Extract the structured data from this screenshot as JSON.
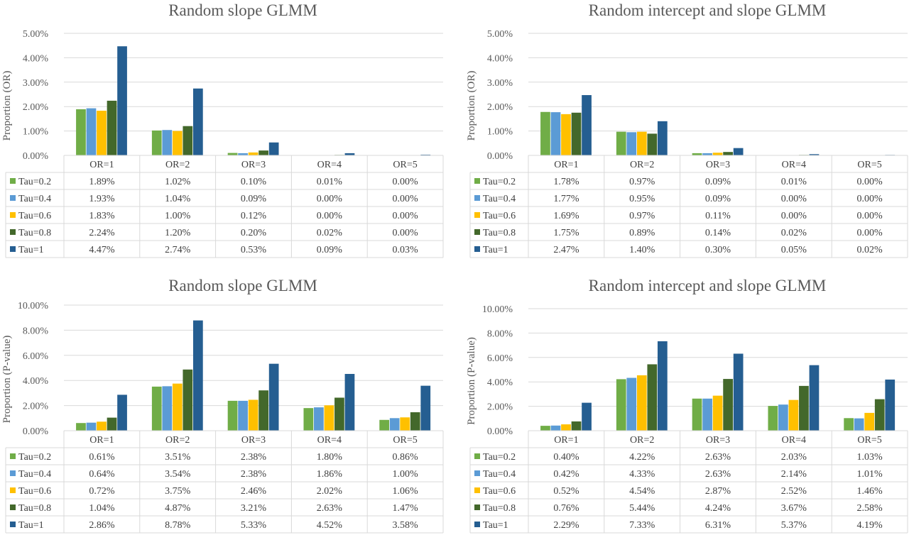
{
  "colors": {
    "Tau=0.2": "#70ad47",
    "Tau=0.4": "#5b9bd5",
    "Tau=0.6": "#ffc000",
    "Tau=0.8": "#43682b",
    "Tau=1": "#255e91"
  },
  "chart_data": [
    {
      "type": "bar",
      "title": "Random slope GLMM",
      "ylabel": "Proportion (OR)",
      "ylim": [
        0,
        5
      ],
      "yticks": [
        "0.00%",
        "1.00%",
        "2.00%",
        "3.00%",
        "4.00%",
        "5.00%"
      ],
      "categories": [
        "OR=1",
        "OR=2",
        "OR=3",
        "OR=4",
        "OR=5"
      ],
      "grid": true,
      "data_table": true,
      "series": [
        {
          "name": "Tau=0.2",
          "values": [
            1.89,
            1.02,
            0.1,
            0.01,
            0.0
          ],
          "labels": [
            "1.89%",
            "1.02%",
            "0.10%",
            "0.01%",
            "0.00%"
          ]
        },
        {
          "name": "Tau=0.4",
          "values": [
            1.93,
            1.04,
            0.09,
            0.0,
            0.0
          ],
          "labels": [
            "1.93%",
            "1.04%",
            "0.09%",
            "0.00%",
            "0.00%"
          ]
        },
        {
          "name": "Tau=0.6",
          "values": [
            1.83,
            1.0,
            0.12,
            0.0,
            0.0
          ],
          "labels": [
            "1.83%",
            "1.00%",
            "0.12%",
            "0.00%",
            "0.00%"
          ]
        },
        {
          "name": "Tau=0.8",
          "values": [
            2.24,
            1.2,
            0.2,
            0.02,
            0.0
          ],
          "labels": [
            "2.24%",
            "1.20%",
            "0.20%",
            "0.02%",
            "0.00%"
          ]
        },
        {
          "name": "Tau=1",
          "values": [
            4.47,
            2.74,
            0.53,
            0.09,
            0.03
          ],
          "labels": [
            "4.47%",
            "2.74%",
            "0.53%",
            "0.09%",
            "0.03%"
          ]
        }
      ]
    },
    {
      "type": "bar",
      "title": "Random intercept and slope GLMM",
      "ylabel": "Proportion (OR)",
      "ylim": [
        0,
        5
      ],
      "yticks": [
        "0.00%",
        "1.00%",
        "2.00%",
        "3.00%",
        "4.00%",
        "5.00%"
      ],
      "categories": [
        "OR=1",
        "OR=2",
        "OR=3",
        "OR=4",
        "OR=5"
      ],
      "grid": true,
      "data_table": true,
      "series": [
        {
          "name": "Tau=0.2",
          "values": [
            1.78,
            0.97,
            0.09,
            0.01,
            0.0
          ],
          "labels": [
            "1.78%",
            "0.97%",
            "0.09%",
            "0.01%",
            "0.00%"
          ]
        },
        {
          "name": "Tau=0.4",
          "values": [
            1.77,
            0.95,
            0.09,
            0.0,
            0.0
          ],
          "labels": [
            "1.77%",
            "0.95%",
            "0.09%",
            "0.00%",
            "0.00%"
          ]
        },
        {
          "name": "Tau=0.6",
          "values": [
            1.69,
            0.97,
            0.11,
            0.0,
            0.0
          ],
          "labels": [
            "1.69%",
            "0.97%",
            "0.11%",
            "0.00%",
            "0.00%"
          ]
        },
        {
          "name": "Tau=0.8",
          "values": [
            1.75,
            0.89,
            0.14,
            0.02,
            0.0
          ],
          "labels": [
            "1.75%",
            "0.89%",
            "0.14%",
            "0.02%",
            "0.00%"
          ]
        },
        {
          "name": "Tau=1",
          "values": [
            2.47,
            1.4,
            0.3,
            0.05,
            0.02
          ],
          "labels": [
            "2.47%",
            "1.40%",
            "0.30%",
            "0.05%",
            "0.02%"
          ]
        }
      ]
    },
    {
      "type": "bar",
      "title": "Random slope GLMM",
      "ylabel": "Proportion (P-value)",
      "ylim": [
        0,
        10
      ],
      "yticks": [
        "0.00%",
        "2.00%",
        "4.00%",
        "6.00%",
        "8.00%",
        "10.00%"
      ],
      "categories": [
        "OR=1",
        "OR=2",
        "OR=3",
        "OR=4",
        "OR=5"
      ],
      "grid": true,
      "data_table": true,
      "series": [
        {
          "name": "Tau=0.2",
          "values": [
            0.61,
            3.51,
            2.38,
            1.8,
            0.86
          ],
          "labels": [
            "0.61%",
            "3.51%",
            "2.38%",
            "1.80%",
            "0.86%"
          ]
        },
        {
          "name": "Tau=0.4",
          "values": [
            0.64,
            3.54,
            2.38,
            1.86,
            1.0
          ],
          "labels": [
            "0.64%",
            "3.54%",
            "2.38%",
            "1.86%",
            "1.00%"
          ]
        },
        {
          "name": "Tau=0.6",
          "values": [
            0.72,
            3.75,
            2.46,
            2.02,
            1.06
          ],
          "labels": [
            "0.72%",
            "3.75%",
            "2.46%",
            "2.02%",
            "1.06%"
          ]
        },
        {
          "name": "Tau=0.8",
          "values": [
            1.04,
            4.87,
            3.21,
            2.63,
            1.47
          ],
          "labels": [
            "1.04%",
            "4.87%",
            "3.21%",
            "2.63%",
            "1.47%"
          ]
        },
        {
          "name": "Tau=1",
          "values": [
            2.86,
            8.78,
            5.33,
            4.52,
            3.58
          ],
          "labels": [
            "2.86%",
            "8.78%",
            "5.33%",
            "4.52%",
            "3.58%"
          ]
        }
      ]
    },
    {
      "type": "bar",
      "title": "Random intercept and slope GLMM",
      "ylabel": "Proportion (P-value)",
      "ylim": [
        0,
        10
      ],
      "yticks": [
        "0.00%",
        "2.00%",
        "4.00%",
        "6.00%",
        "8.00%",
        "10.00%"
      ],
      "categories": [
        "OR=1",
        "OR=2",
        "OR=3",
        "OR=4",
        "OR=5"
      ],
      "grid": true,
      "data_table": true,
      "series": [
        {
          "name": "Tau=0.2",
          "values": [
            0.4,
            4.22,
            2.63,
            2.03,
            1.03
          ],
          "labels": [
            "0.40%",
            "4.22%",
            "2.63%",
            "2.03%",
            "1.03%"
          ]
        },
        {
          "name": "Tau=0.4",
          "values": [
            0.42,
            4.33,
            2.63,
            2.14,
            1.01
          ],
          "labels": [
            "0.42%",
            "4.33%",
            "2.63%",
            "2.14%",
            "1.01%"
          ]
        },
        {
          "name": "Tau=0.6",
          "values": [
            0.52,
            4.54,
            2.87,
            2.52,
            1.46
          ],
          "labels": [
            "0.52%",
            "4.54%",
            "2.87%",
            "2.52%",
            "1.46%"
          ]
        },
        {
          "name": "Tau=0.8",
          "values": [
            0.76,
            5.44,
            4.24,
            3.67,
            2.58
          ],
          "labels": [
            "0.76%",
            "5.44%",
            "4.24%",
            "3.67%",
            "2.58%"
          ]
        },
        {
          "name": "Tau=1",
          "values": [
            2.29,
            7.33,
            6.31,
            5.37,
            4.19
          ],
          "labels": [
            "2.29%",
            "7.33%",
            "6.31%",
            "5.37%",
            "4.19%"
          ]
        }
      ]
    }
  ]
}
